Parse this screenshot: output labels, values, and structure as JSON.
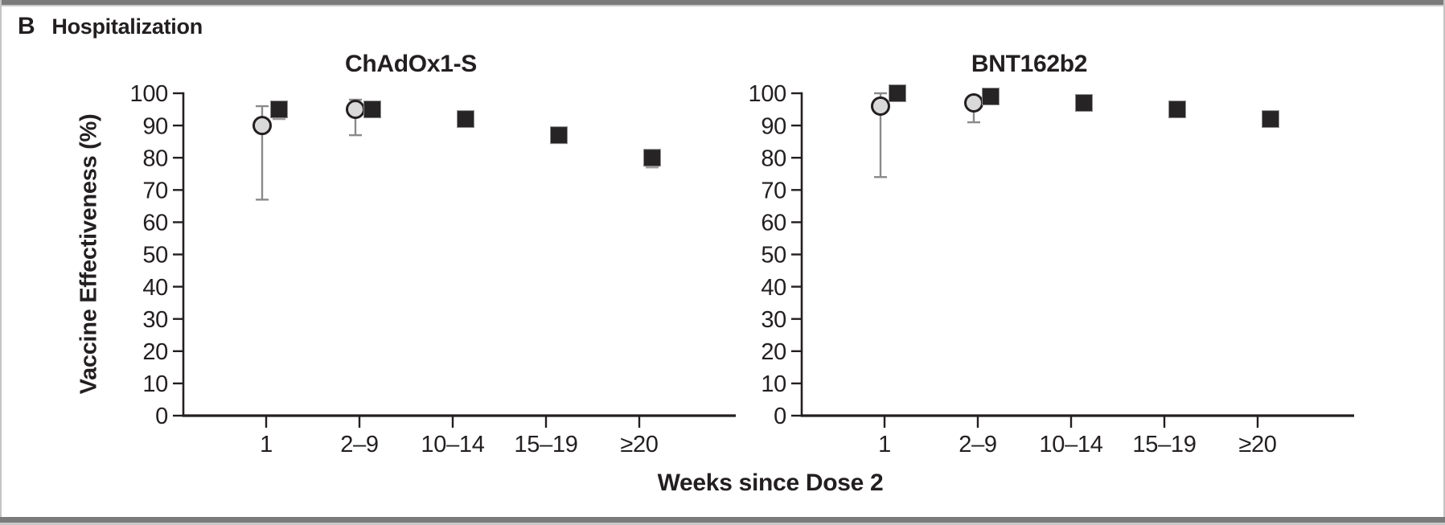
{
  "figure": {
    "panel_label": "B",
    "panel_heading": "Hospitalization",
    "x_axis_label": "Weeks since Dose 2",
    "y_axis_label": "Vaccine Effectiveness (%)"
  },
  "colors": {
    "text": "#231f20",
    "axis": "#231f20",
    "square_fill": "#272425",
    "square_edge": "#8f8f8f",
    "circle_fill": "#d9d9d9",
    "circle_stroke": "#231f20",
    "error_bar_circle": "#8a8a8a",
    "error_bar_square": "#9e9e9e",
    "frame": "#7b7b7b"
  },
  "chart_data": [
    {
      "type": "scatter",
      "title": "ChAdOx1-S",
      "categories": [
        "1",
        "2–9",
        "10–14",
        "15–19",
        "≥20"
      ],
      "xlabel": "Weeks since Dose 2",
      "ylabel": "Vaccine Effectiveness (%)",
      "ylim": [
        0,
        100
      ],
      "ytick_step": 10,
      "grid": false,
      "legend": "none",
      "series": [
        {
          "name": "gray-circle-series",
          "marker": "circle",
          "points": [
            {
              "x": "1",
              "value": 90,
              "ci": [
                67,
                96
              ]
            },
            {
              "x": "2–9",
              "value": 95,
              "ci": [
                87,
                98
              ]
            }
          ]
        },
        {
          "name": "black-square-series",
          "marker": "square",
          "points": [
            {
              "x": "1",
              "value": 95,
              "ci": [
                92,
                97
              ]
            },
            {
              "x": "2–9",
              "value": 95,
              "ci": null
            },
            {
              "x": "10–14",
              "value": 92,
              "ci": null
            },
            {
              "x": "15–19",
              "value": 87,
              "ci": null
            },
            {
              "x": "≥20",
              "value": 80,
              "ci": [
                77,
                82
              ]
            }
          ]
        }
      ]
    },
    {
      "type": "scatter",
      "title": "BNT162b2",
      "categories": [
        "1",
        "2–9",
        "10–14",
        "15–19",
        "≥20"
      ],
      "xlabel": "Weeks since Dose 2",
      "ylabel": "Vaccine Effectiveness (%)",
      "ylim": [
        0,
        100
      ],
      "ytick_step": 10,
      "grid": false,
      "legend": "none",
      "series": [
        {
          "name": "gray-circle-series",
          "marker": "circle",
          "points": [
            {
              "x": "1",
              "value": 96,
              "ci": [
                74,
                100
              ]
            },
            {
              "x": "2–9",
              "value": 97,
              "ci": [
                91,
                99
              ]
            }
          ]
        },
        {
          "name": "black-square-series",
          "marker": "square",
          "points": [
            {
              "x": "1",
              "value": 100,
              "ci": null
            },
            {
              "x": "2–9",
              "value": 99,
              "ci": null
            },
            {
              "x": "10–14",
              "value": 97,
              "ci": null
            },
            {
              "x": "15–19",
              "value": 95,
              "ci": null
            },
            {
              "x": "≥20",
              "value": 92,
              "ci": null
            }
          ]
        }
      ]
    }
  ]
}
